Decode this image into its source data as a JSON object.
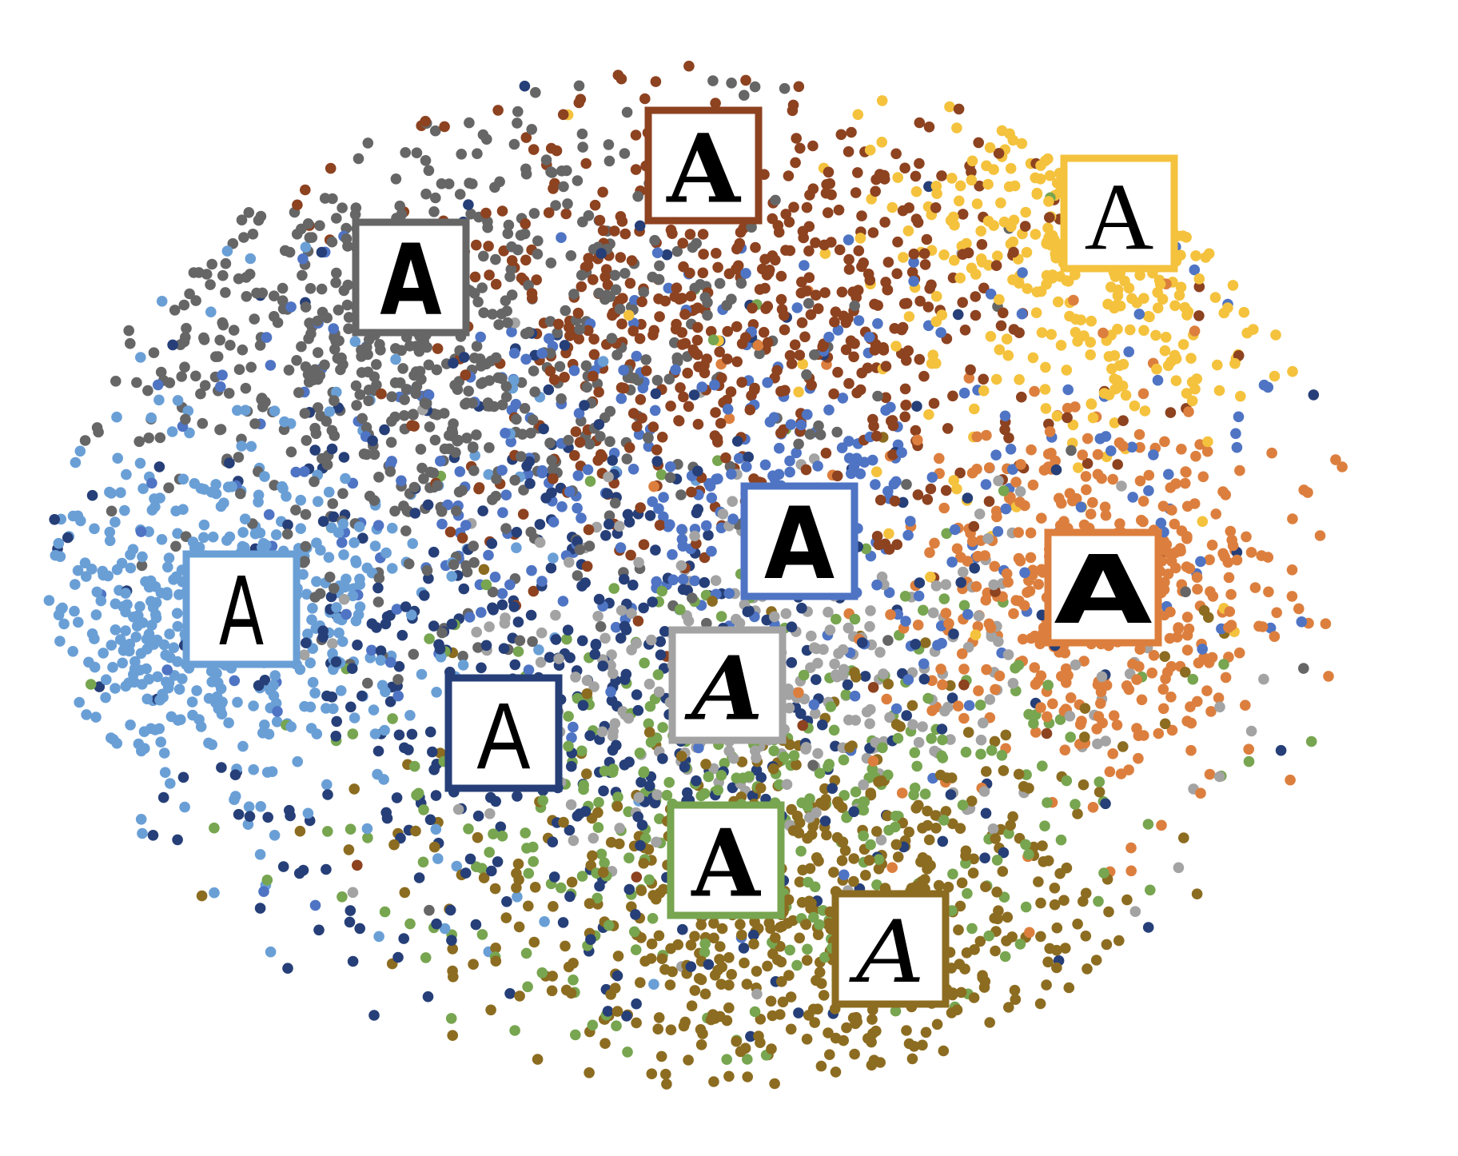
{
  "chart_data": {
    "type": "scatter",
    "title": "",
    "xlabel": "",
    "ylabel": "",
    "grid": false,
    "legend": "none",
    "note": "t-SNE style embedding of font styles; each cluster marked by a glyph 'A' sample in a colored frame",
    "series": [
      {
        "color": "#dc7f3e",
        "exemplar_glyph": "A",
        "font_style": "slab-block",
        "center": [
          1380,
          740
        ],
        "spread": [
          115,
          105
        ],
        "count": 480,
        "box": [
          1380,
          735
        ]
      },
      {
        "color": "#f4c23d",
        "exemplar_glyph": "A",
        "font_style": "classic-serif",
        "center": [
          1400,
          290
        ],
        "spread": [
          125,
          120
        ],
        "count": 360,
        "box": [
          1400,
          267
        ]
      },
      {
        "color": "#8d4220",
        "exemplar_glyph": "A",
        "font_style": "bold-serif",
        "center": [
          920,
          390
        ],
        "spread": [
          190,
          150
        ],
        "count": 620,
        "box": [
          880,
          207
        ]
      },
      {
        "color": "#666666",
        "exemplar_glyph": "A",
        "font_style": "condensed-sans",
        "center": [
          510,
          430
        ],
        "spread": [
          200,
          150
        ],
        "count": 700,
        "box": [
          514,
          347
        ]
      },
      {
        "color": "#6a9fd6",
        "exemplar_glyph": "A",
        "font_style": "hand-marker",
        "center": [
          270,
          770
        ],
        "spread": [
          130,
          110
        ],
        "count": 520,
        "box": [
          302,
          762
        ]
      },
      {
        "color": "#4f74c4",
        "exemplar_glyph": "A",
        "font_style": "heavy-grotesque",
        "center": [
          890,
          610
        ],
        "spread": [
          300,
          140
        ],
        "count": 400,
        "box": [
          1000,
          677
        ]
      },
      {
        "color": "#263f78",
        "exemplar_glyph": "A",
        "font_style": "thin-didone",
        "center": [
          700,
          860
        ],
        "spread": [
          250,
          190
        ],
        "count": 520,
        "box": [
          630,
          917
        ]
      },
      {
        "color": "#a3a3a3",
        "exemplar_glyph": "A",
        "font_style": "brush-italic",
        "center": [
          970,
          850
        ],
        "spread": [
          180,
          110
        ],
        "count": 320,
        "box": [
          910,
          857
        ]
      },
      {
        "color": "#77a550",
        "exemplar_glyph": "A",
        "font_style": "blackletter",
        "center": [
          930,
          1000
        ],
        "spread": [
          260,
          150
        ],
        "count": 420,
        "box": [
          908,
          1076
        ]
      },
      {
        "color": "#8c6c20",
        "exemplar_glyph": "A",
        "font_style": "calligraphic-script",
        "center": [
          1010,
          1160
        ],
        "spread": [
          200,
          120
        ],
        "count": 620,
        "box": [
          1114,
          1187
        ]
      }
    ]
  }
}
